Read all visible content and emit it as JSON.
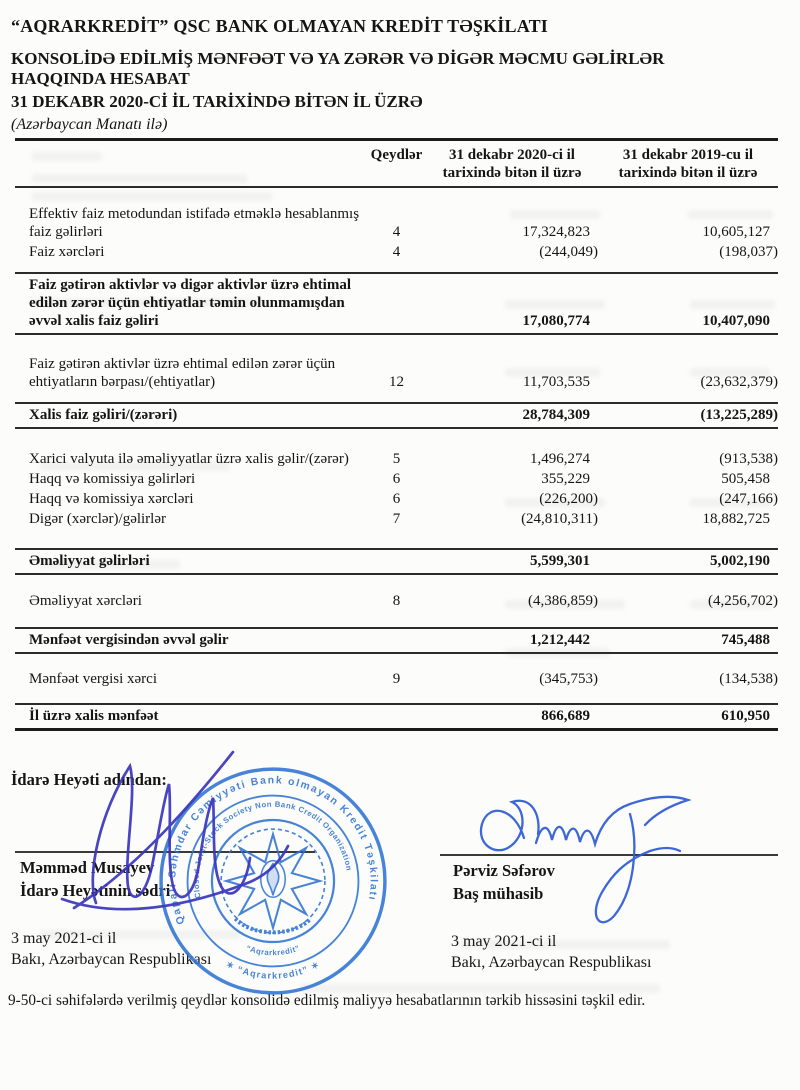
{
  "document": {
    "title_line1": "“AQRARKREDİT” QSC BANK OLMAYAN KREDİT TƏŞKİLATI",
    "title_line2": "KONSOLİDƏ EDİLMİŞ MƏNFƏƏT VƏ YA ZƏRƏR VƏ DİGƏR MƏCMU GƏLİRLƏR HAQQINDA HESABAT",
    "title_line3": "31 DEKABR 2020-Cİ İL TARİXİNDƏ BİTƏN İL ÜZRƏ",
    "currency_note": "(Azərbaycan Manatı ilə)"
  },
  "table": {
    "headers": {
      "notes": "Qeydlər",
      "col2020": "31 dekabr 2020-ci il tarixində bitən il üzrə",
      "col2019": "31 dekabr 2019-cu il tarixində bitən il üzrə"
    },
    "rows": [
      {
        "type": "item",
        "spacer": 17,
        "label": "Effektiv faiz metodundan istifadə etməklə hesablanmış faiz gəlirləri",
        "note": "4",
        "v2020": "17,324,823",
        "v2019": "10,605,127"
      },
      {
        "type": "item",
        "spacer": 2,
        "label": "Faiz xərcləri",
        "note": "4",
        "v2020": "(244,049)",
        "v2019": "(198,037)"
      },
      {
        "type": "total",
        "spacer": 11,
        "label": "Faiz gətirən aktivlər və digər aktivlər üzrə ehtimal edilən zərər üçün ehtiyatlar təmin olunmamışdan əvvəl xalis faiz gəliri",
        "note": "",
        "v2020": "17,080,774",
        "v2019": "10,407,090"
      },
      {
        "type": "item",
        "spacer": 20,
        "label": "Faiz gətirən aktivlər üzrə ehtimal edilən zərər üçün ehtiyatların bərpası/(ehtiyatlar)",
        "note": "12",
        "v2020": "11,703,535",
        "v2019": "(23,632,379)"
      },
      {
        "type": "total",
        "spacer": 11,
        "label": "Xalis faiz gəliri/(zərəri)",
        "note": "",
        "v2020": "28,784,309",
        "v2019": "(13,225,289)"
      },
      {
        "type": "item",
        "spacer": 21,
        "label": "Xarici valyuta ilə əməliyyatlar üzrə xalis gəlir/(zərər)",
        "note": "5",
        "v2020": "1,496,274",
        "v2019": "(913,538)"
      },
      {
        "type": "item",
        "spacer": 2,
        "label": "Haqq və komissiya gəlirləri",
        "note": "6",
        "v2020": "355,229",
        "v2019": "505,458"
      },
      {
        "type": "item",
        "spacer": 2,
        "label": "Haqq və komissiya xərcləri",
        "note": "6",
        "v2020": "(226,200)",
        "v2019": "(247,166)"
      },
      {
        "type": "item",
        "spacer": 2,
        "label": "Digər (xərclər)/gəlirlər",
        "note": "7",
        "v2020": "(24,810,311)",
        "v2019": "18,882,725"
      },
      {
        "type": "total",
        "spacer": 20,
        "label": "Əməliyyat gəlirləri",
        "note": "",
        "v2020": "5,599,301",
        "v2019": "5,002,190"
      },
      {
        "type": "item",
        "spacer": 17,
        "label": "Əməliyyat xərcləri",
        "note": "8",
        "v2020": "(4,386,859)",
        "v2019": "(4,256,702)"
      },
      {
        "type": "total",
        "spacer": 17,
        "label": "Mənfəət vergisindən əvvəl gəlir",
        "note": "",
        "v2020": "1,212,442",
        "v2019": "745,488"
      },
      {
        "type": "item",
        "spacer": 16,
        "label": "Mənfəət vergisi xərci",
        "note": "9",
        "v2020": "(345,753)",
        "v2019": "(134,538)"
      },
      {
        "type": "total",
        "spacer": 15,
        "thick_bottom": true,
        "label": "İl üzrə xalis mənfəət",
        "note": "",
        "v2020": "866,689",
        "v2019": "610,950"
      }
    ]
  },
  "signatures": {
    "heading": "İdarə Heyəti adından:",
    "left": {
      "name": "Məmməd Musayev",
      "role": "İdarə Heyətinin sədri",
      "date": "3 may 2021-ci il",
      "place": "Bakı, Azərbaycan Respublikası"
    },
    "right": {
      "name": "Pərviz Səfərov",
      "role": "Baş mühasib",
      "date": "3 may 2021-ci il",
      "place": "Bakı, Azərbaycan Respublikası"
    }
  },
  "stamp": {
    "ring_az_top": "Qapalı Səhmdar Cəmiyyəti Bank olmayan Kredit Təşkilatı",
    "ring_az_bottom": "✶  “Aqrarkredit”  ✶",
    "ring_en_top": "Closed Joint-Stock Society Non Bank Credit Organization",
    "ring_en_bottom": "“Aqrarkredit”"
  },
  "footer_note": "9-50-ci səhifələrdə verilmiş qeydlər konsolidə edilmiş maliyyə hesabatlarının tərkib hissəsini təşkil edir.",
  "colors": {
    "ink": "#151515",
    "rule": "#2b2b2b",
    "stamp_blue": "#2f74d4",
    "signature_left_blue": "#3a36bd",
    "signature_right_blue": "#2d5bd4"
  }
}
